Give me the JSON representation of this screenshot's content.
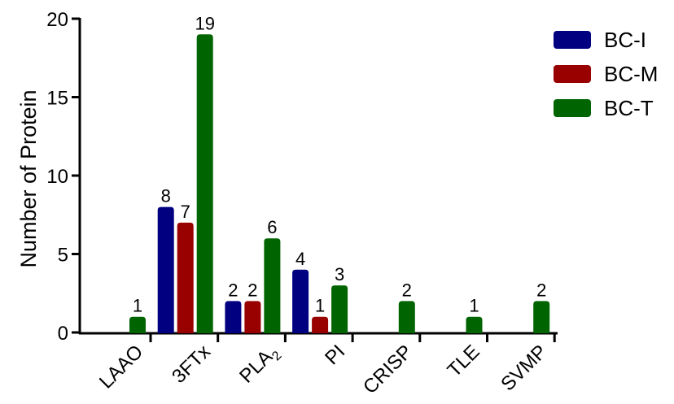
{
  "chart_data": {
    "type": "bar",
    "title": "",
    "xlabel": "",
    "ylabel": "Number of Protein",
    "ylim": [
      0,
      20
    ],
    "yticks": [
      0,
      5,
      10,
      15,
      20
    ],
    "categories": [
      "LAAO",
      "3FTx",
      "PLA2",
      "PI",
      "CRISP",
      "TLE",
      "SVMP"
    ],
    "series": [
      {
        "name": "BC-I",
        "color": "#000080",
        "values": [
          null,
          8,
          2,
          4,
          null,
          null,
          null
        ]
      },
      {
        "name": "BC-M",
        "color": "#990000",
        "values": [
          null,
          7,
          2,
          1,
          null,
          null,
          null
        ]
      },
      {
        "name": "BC-T",
        "color": "#006400",
        "values": [
          1,
          19,
          6,
          3,
          2,
          1,
          2
        ]
      }
    ],
    "legend": "top-right",
    "grid": false
  }
}
